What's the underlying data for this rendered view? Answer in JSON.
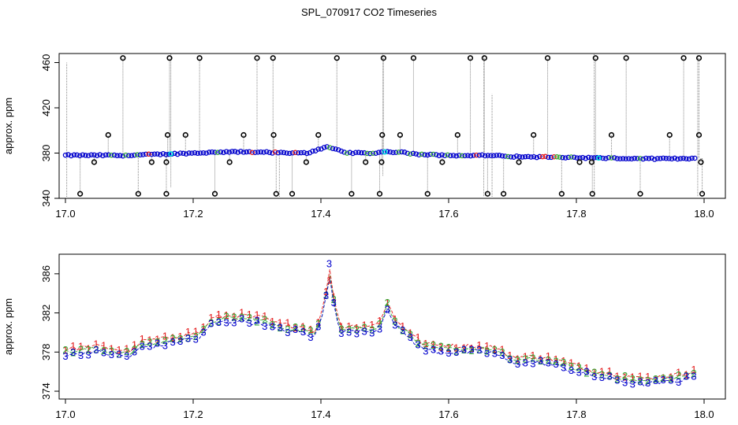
{
  "title": "SPL_070917  CO2 Timeseries",
  "colors": {
    "red": "#e41a1c",
    "green": "#33aa33",
    "blue": "#0000cc",
    "cyan": "#00dddd",
    "black": "#000000",
    "grey": "#888888"
  },
  "chart_data": [
    {
      "name": "top",
      "type": "scatter",
      "title": "",
      "xlabel": "",
      "ylabel": "approx. ppm",
      "xlim": [
        17.0,
        18.0
      ],
      "ylim": [
        340,
        468
      ],
      "xticks": [
        17.0,
        17.2,
        17.4,
        17.6,
        17.8,
        18.0
      ],
      "xtick_labels": [
        "17.0",
        "17.2",
        "17.4",
        "17.6",
        "17.8",
        "18.0"
      ],
      "yticks": [
        340,
        380,
        420,
        460
      ],
      "ytick_labels": [
        "340",
        "380",
        "420",
        "460"
      ],
      "baseline": [
        [
          17.0,
          378
        ],
        [
          17.05,
          378
        ],
        [
          17.1,
          378
        ],
        [
          17.15,
          379
        ],
        [
          17.2,
          380
        ],
        [
          17.25,
          381
        ],
        [
          17.3,
          381
        ],
        [
          17.35,
          380
        ],
        [
          17.38,
          380
        ],
        [
          17.41,
          386
        ],
        [
          17.44,
          380
        ],
        [
          17.48,
          380
        ],
        [
          17.5,
          381
        ],
        [
          17.52,
          381
        ],
        [
          17.55,
          379
        ],
        [
          17.6,
          378
        ],
        [
          17.66,
          378
        ],
        [
          17.7,
          377
        ],
        [
          17.75,
          376.5
        ],
        [
          17.8,
          376
        ],
        [
          17.85,
          375.5
        ],
        [
          17.9,
          375
        ],
        [
          17.95,
          375
        ],
        [
          17.99,
          375.5
        ]
      ],
      "outliers": [
        {
          "x": 17.09,
          "y": 464
        },
        {
          "x": 17.163,
          "y": 464
        },
        {
          "x": 17.21,
          "y": 464
        },
        {
          "x": 17.3,
          "y": 464
        },
        {
          "x": 17.325,
          "y": 464
        },
        {
          "x": 17.425,
          "y": 464
        },
        {
          "x": 17.498,
          "y": 464
        },
        {
          "x": 17.545,
          "y": 464
        },
        {
          "x": 17.634,
          "y": 464
        },
        {
          "x": 17.656,
          "y": 464
        },
        {
          "x": 17.755,
          "y": 464
        },
        {
          "x": 17.83,
          "y": 464
        },
        {
          "x": 17.878,
          "y": 464
        },
        {
          "x": 17.968,
          "y": 464
        },
        {
          "x": 17.992,
          "y": 464
        },
        {
          "x": 17.067,
          "y": 396
        },
        {
          "x": 17.16,
          "y": 396
        },
        {
          "x": 17.188,
          "y": 396
        },
        {
          "x": 17.279,
          "y": 396
        },
        {
          "x": 17.326,
          "y": 396
        },
        {
          "x": 17.396,
          "y": 396
        },
        {
          "x": 17.496,
          "y": 396
        },
        {
          "x": 17.524,
          "y": 396
        },
        {
          "x": 17.614,
          "y": 396
        },
        {
          "x": 17.733,
          "y": 396
        },
        {
          "x": 17.855,
          "y": 396
        },
        {
          "x": 17.946,
          "y": 396
        },
        {
          "x": 17.992,
          "y": 396
        },
        {
          "x": 17.045,
          "y": 372
        },
        {
          "x": 17.135,
          "y": 372
        },
        {
          "x": 17.158,
          "y": 372
        },
        {
          "x": 17.257,
          "y": 372
        },
        {
          "x": 17.377,
          "y": 372
        },
        {
          "x": 17.47,
          "y": 372
        },
        {
          "x": 17.495,
          "y": 372
        },
        {
          "x": 17.59,
          "y": 372
        },
        {
          "x": 17.71,
          "y": 372
        },
        {
          "x": 17.805,
          "y": 372
        },
        {
          "x": 17.824,
          "y": 372
        },
        {
          "x": 17.995,
          "y": 372
        },
        {
          "x": 17.023,
          "y": 344
        },
        {
          "x": 17.114,
          "y": 344
        },
        {
          "x": 17.158,
          "y": 344
        },
        {
          "x": 17.234,
          "y": 344
        },
        {
          "x": 17.33,
          "y": 344
        },
        {
          "x": 17.355,
          "y": 344
        },
        {
          "x": 17.448,
          "y": 344
        },
        {
          "x": 17.492,
          "y": 344
        },
        {
          "x": 17.567,
          "y": 344
        },
        {
          "x": 17.661,
          "y": 344
        },
        {
          "x": 17.686,
          "y": 344
        },
        {
          "x": 17.777,
          "y": 344
        },
        {
          "x": 17.825,
          "y": 344
        },
        {
          "x": 17.9,
          "y": 344
        },
        {
          "x": 17.997,
          "y": 344
        }
      ],
      "spikes": [
        {
          "x": 17.002,
          "y0": 340,
          "y1": 460
        },
        {
          "x": 17.165,
          "y0": 350,
          "y1": 468
        },
        {
          "x": 17.335,
          "y0": 340,
          "y1": 378
        },
        {
          "x": 17.497,
          "y0": 360,
          "y1": 468
        },
        {
          "x": 17.655,
          "y0": 342,
          "y1": 468
        },
        {
          "x": 17.668,
          "y0": 340,
          "y1": 432
        },
        {
          "x": 17.828,
          "y0": 340,
          "y1": 468
        },
        {
          "x": 17.99,
          "y0": 342,
          "y1": 468
        }
      ]
    },
    {
      "name": "bottom",
      "type": "line",
      "title": "",
      "xlabel": "",
      "ylabel": "approx. ppm",
      "xlim": [
        17.0,
        18.0
      ],
      "ylim": [
        373.2,
        388
      ],
      "xticks": [
        17.0,
        17.2,
        17.4,
        17.6,
        17.8,
        18.0
      ],
      "xtick_labels": [
        "17.0",
        "17.2",
        "17.4",
        "17.6",
        "17.8",
        "18.0"
      ],
      "yticks": [
        374,
        378,
        382,
        386
      ],
      "ytick_labels": [
        "374",
        "378",
        "382",
        "386"
      ],
      "profile": [
        [
          17.0,
          378
        ],
        [
          17.05,
          378.3
        ],
        [
          17.08,
          378.0
        ],
        [
          17.1,
          377.8
        ],
        [
          17.12,
          378.8
        ],
        [
          17.15,
          379.0
        ],
        [
          17.19,
          379.6
        ],
        [
          17.21,
          379.7
        ],
        [
          17.23,
          381.2
        ],
        [
          17.27,
          381.5
        ],
        [
          17.31,
          381.2
        ],
        [
          17.33,
          380.6
        ],
        [
          17.37,
          380.3
        ],
        [
          17.39,
          379.8
        ],
        [
          17.405,
          382.5
        ],
        [
          17.413,
          386.4
        ],
        [
          17.42,
          383.5
        ],
        [
          17.43,
          380.3
        ],
        [
          17.46,
          380.4
        ],
        [
          17.49,
          380.5
        ],
        [
          17.505,
          383.0
        ],
        [
          17.515,
          381.0
        ],
        [
          17.52,
          380.8
        ],
        [
          17.535,
          380.0
        ],
        [
          17.56,
          378.5
        ],
        [
          17.6,
          378.3
        ],
        [
          17.65,
          378.3
        ],
        [
          17.67,
          378.2
        ],
        [
          17.7,
          377.2
        ],
        [
          17.75,
          377.2
        ],
        [
          17.8,
          376.3
        ],
        [
          17.83,
          375.8
        ],
        [
          17.86,
          375.5
        ],
        [
          17.9,
          375.0
        ],
        [
          17.92,
          375.1
        ],
        [
          17.95,
          375.3
        ],
        [
          17.97,
          375.5
        ],
        [
          17.99,
          376.2
        ]
      ],
      "series": [
        {
          "name": "1",
          "symbol": "1",
          "color": "#e41a1c",
          "offset": 0.3
        },
        {
          "name": "2",
          "symbol": "2",
          "color": "#33aa33",
          "offset": 0.0
        },
        {
          "name": "3",
          "symbol": "3",
          "color": "#0000cc",
          "offset": -0.3
        }
      ]
    }
  ]
}
